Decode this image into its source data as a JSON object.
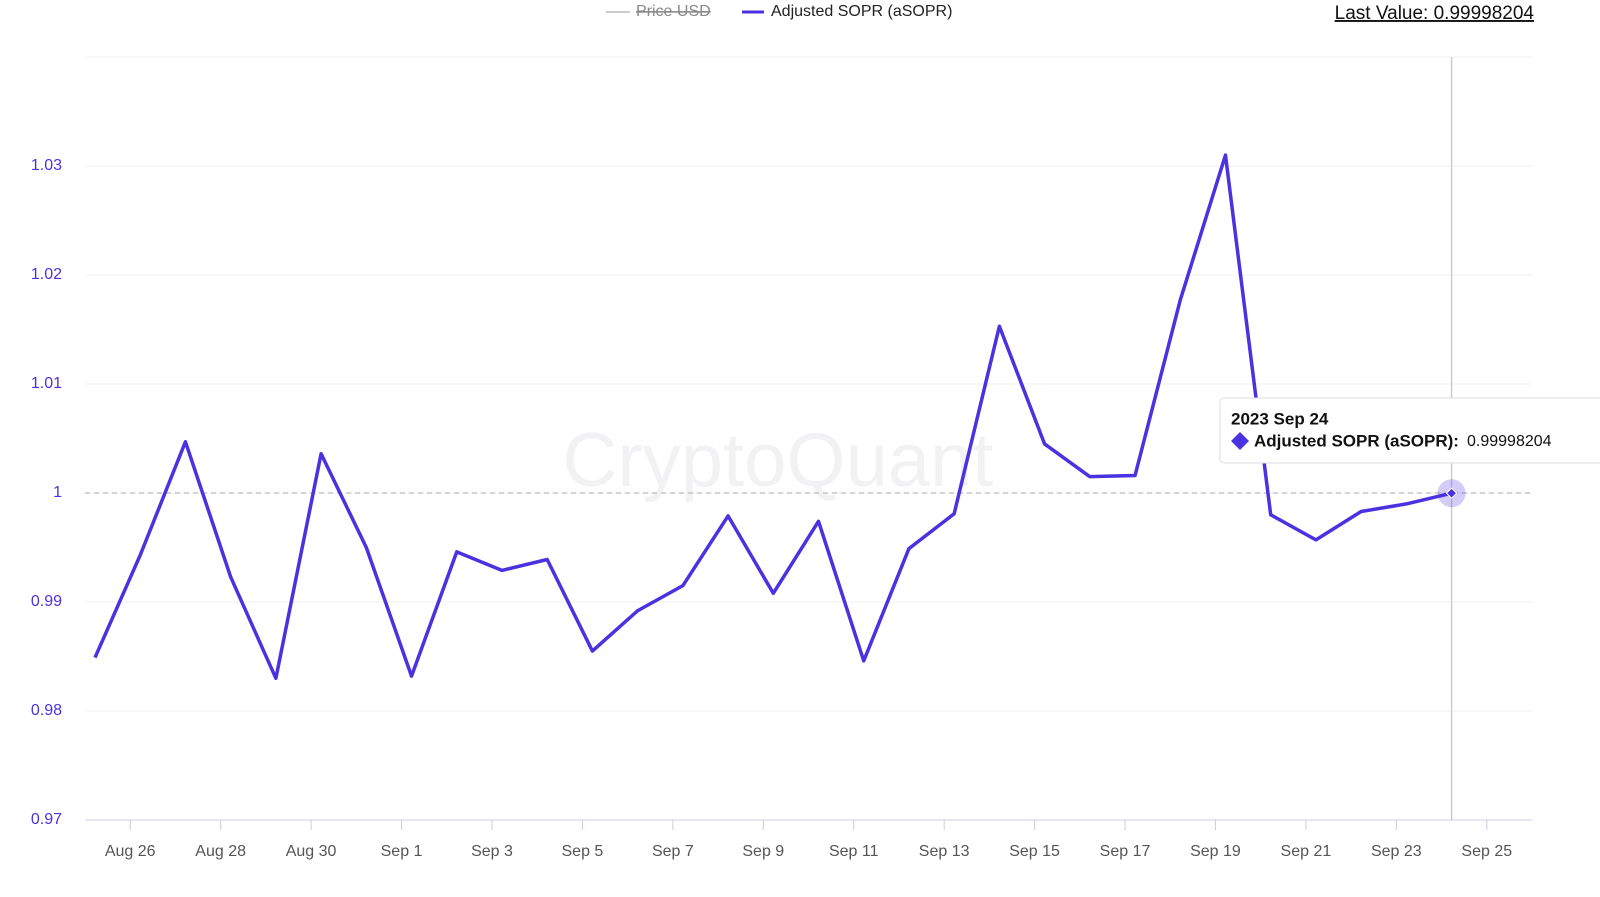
{
  "chart_data": {
    "type": "line",
    "x": [
      "Aug 25",
      "Aug 26",
      "Aug 27",
      "Aug 28",
      "Aug 29",
      "Aug 30",
      "Aug 31",
      "Sep 1",
      "Sep 2",
      "Sep 3",
      "Sep 4",
      "Sep 5",
      "Sep 6",
      "Sep 7",
      "Sep 8",
      "Sep 9",
      "Sep 10",
      "Sep 11",
      "Sep 12",
      "Sep 13",
      "Sep 14",
      "Sep 15",
      "Sep 16",
      "Sep 17",
      "Sep 18",
      "Sep 19",
      "Sep 20",
      "Sep 21",
      "Sep 22",
      "Sep 23",
      "Sep 24"
    ],
    "series": [
      {
        "name": "Adjusted SOPR (aSOPR)",
        "color": "#4b32e0",
        "values": [
          0.9849,
          0.9943,
          1.0047,
          0.9923,
          0.983,
          1.0036,
          0.995,
          0.9832,
          0.9946,
          0.9929,
          0.9939,
          0.9855,
          0.9892,
          0.9915,
          0.9979,
          0.9908,
          0.9974,
          0.9846,
          0.9949,
          0.9981,
          1.0153,
          1.0045,
          1.0015,
          1.0016,
          1.0177,
          1.031,
          0.998,
          0.9957,
          0.9983,
          0.999,
          0.99998204
        ]
      }
    ],
    "hidden_series": [
      {
        "name": "Price USD",
        "color": "#cccccc"
      }
    ],
    "xlim": [
      "Aug 25",
      "Sep 26"
    ],
    "xticks": [
      "Aug 26",
      "Aug 28",
      "Aug 30",
      "Sep 1",
      "Sep 3",
      "Sep 5",
      "Sep 7",
      "Sep 9",
      "Sep 11",
      "Sep 13",
      "Sep 15",
      "Sep 17",
      "Sep 19",
      "Sep 21",
      "Sep 23",
      "Sep 25"
    ],
    "ylim": [
      0.97,
      1.04
    ],
    "yticks": [
      0.97,
      0.98,
      0.99,
      1,
      1.01,
      1.02,
      1.03
    ],
    "reference_line": 1,
    "grid": true,
    "last_value": "Last Value: 0.99998204",
    "watermark": "CryptoQuant",
    "tooltip": {
      "title": "2023 Sep 24",
      "label": "Adjusted SOPR (aSOPR):"
    }
  }
}
